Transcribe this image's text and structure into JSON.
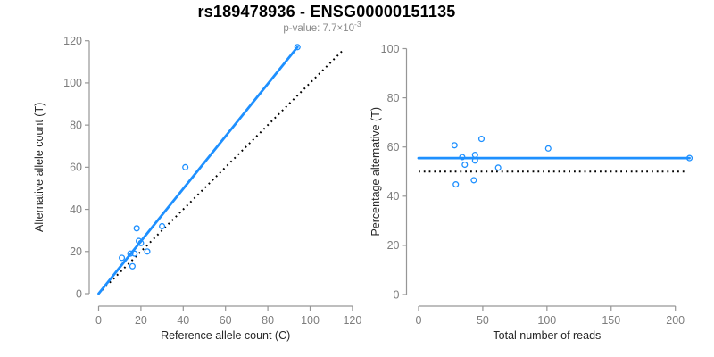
{
  "header": {
    "title": "rs189478936 - ENSG00000151135",
    "subtitle": {
      "prefix": "p-value: 7.7",
      "times": "×",
      "base": "10",
      "exponent": "-3"
    }
  },
  "colors": {
    "point_blue": "#1E90FF",
    "fit_line_blue": "#1E90FF",
    "reference_line_black": "#000000",
    "axis_line_gray": "#969696",
    "tick_text_gray": "#7D7D7D",
    "axis_title_color": "#262626",
    "subtitle_gray": "#8A8A8A",
    "title_color": "#000000"
  },
  "chart_data": [
    {
      "type": "scatter",
      "name": "allele-counts-scatter",
      "xlabel": "Reference allele count (C)",
      "ylabel": "Alternative allele count (T)",
      "xlim": [
        0,
        120
      ],
      "ylim": [
        0,
        120
      ],
      "xticks": [
        0,
        20,
        40,
        60,
        80,
        100,
        120
      ],
      "yticks": [
        0,
        20,
        40,
        60,
        80,
        100,
        120
      ],
      "grid": false,
      "legend": null,
      "points": [
        [
          11,
          17
        ],
        [
          15,
          19
        ],
        [
          16,
          13
        ],
        [
          17,
          19
        ],
        [
          18,
          31
        ],
        [
          19,
          25
        ],
        [
          20,
          24
        ],
        [
          23,
          20
        ],
        [
          30,
          32
        ],
        [
          41,
          60
        ],
        [
          94,
          117
        ]
      ],
      "lines": [
        {
          "role": "reference-identity",
          "style": "dotted",
          "color": "#000000",
          "x1": 0,
          "y1": 0,
          "x2": 116,
          "y2": 116
        },
        {
          "role": "fit",
          "style": "solid",
          "color": "#1E90FF",
          "x1": 0,
          "y1": 0,
          "x2": 94,
          "y2": 117
        }
      ]
    },
    {
      "type": "scatter",
      "name": "percentage-vs-reads-scatter",
      "xlabel": "Total number of reads",
      "ylabel": "Percentage alternative (T)",
      "xlim": [
        0,
        211
      ],
      "ylim": [
        0,
        100
      ],
      "xticks": [
        0,
        50,
        100,
        150,
        200
      ],
      "yticks": [
        0,
        20,
        40,
        60,
        80,
        100
      ],
      "grid": false,
      "legend": null,
      "points": [
        [
          28,
          60.7
        ],
        [
          29,
          44.8
        ],
        [
          34,
          55.9
        ],
        [
          36,
          52.8
        ],
        [
          43,
          46.5
        ],
        [
          44,
          56.8
        ],
        [
          44,
          54.5
        ],
        [
          49,
          63.3
        ],
        [
          62,
          51.6
        ],
        [
          101,
          59.4
        ],
        [
          211,
          55.5
        ]
      ],
      "lines": [
        {
          "role": "reference-50pct",
          "style": "dotted",
          "color": "#000000",
          "x1": 0,
          "y1": 50,
          "x2": 208,
          "y2": 50
        },
        {
          "role": "fit",
          "style": "solid",
          "color": "#1E90FF",
          "x1": 0,
          "y1": 55.5,
          "x2": 211,
          "y2": 55.5
        }
      ]
    }
  ]
}
